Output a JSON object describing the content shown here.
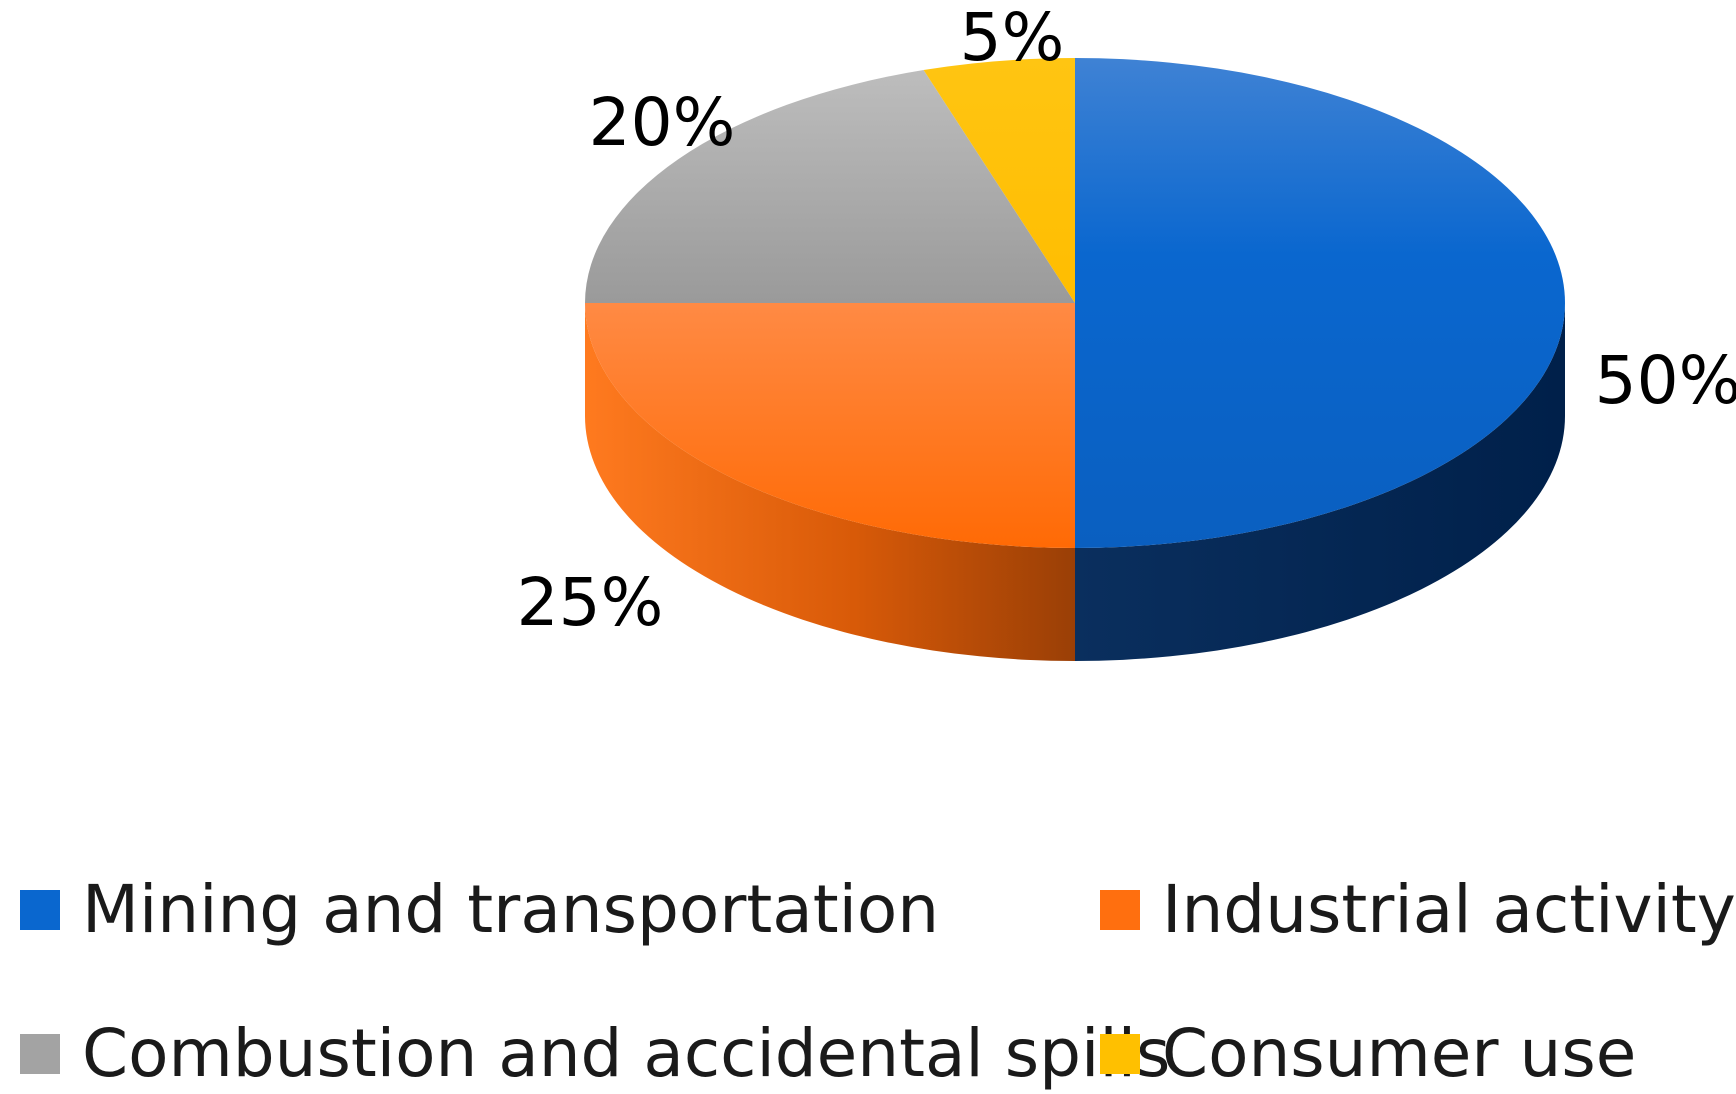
{
  "chart_data": {
    "type": "pie",
    "variant": "3d",
    "title": "",
    "categories": [
      "Mining and transportation",
      "Industrial activity",
      "Combustion and accidental spills",
      "Consumer use"
    ],
    "values": [
      50,
      25,
      20,
      5
    ],
    "value_labels": [
      "50%",
      "25%",
      "20%",
      "5%"
    ],
    "colors": [
      "#0a67cf",
      "#ff6f0f",
      "#a3a3a3",
      "#ffc000"
    ],
    "legend": {
      "position": "bottom",
      "entries": [
        {
          "label": "Mining and transportation",
          "color": "#0a67cf"
        },
        {
          "label": "Industrial activity",
          "color": "#ff6f0f"
        },
        {
          "label": "Combustion and accidental spills",
          "color": "#a3a3a3"
        },
        {
          "label": "Consumer use",
          "color": "#ffc000"
        }
      ]
    }
  }
}
